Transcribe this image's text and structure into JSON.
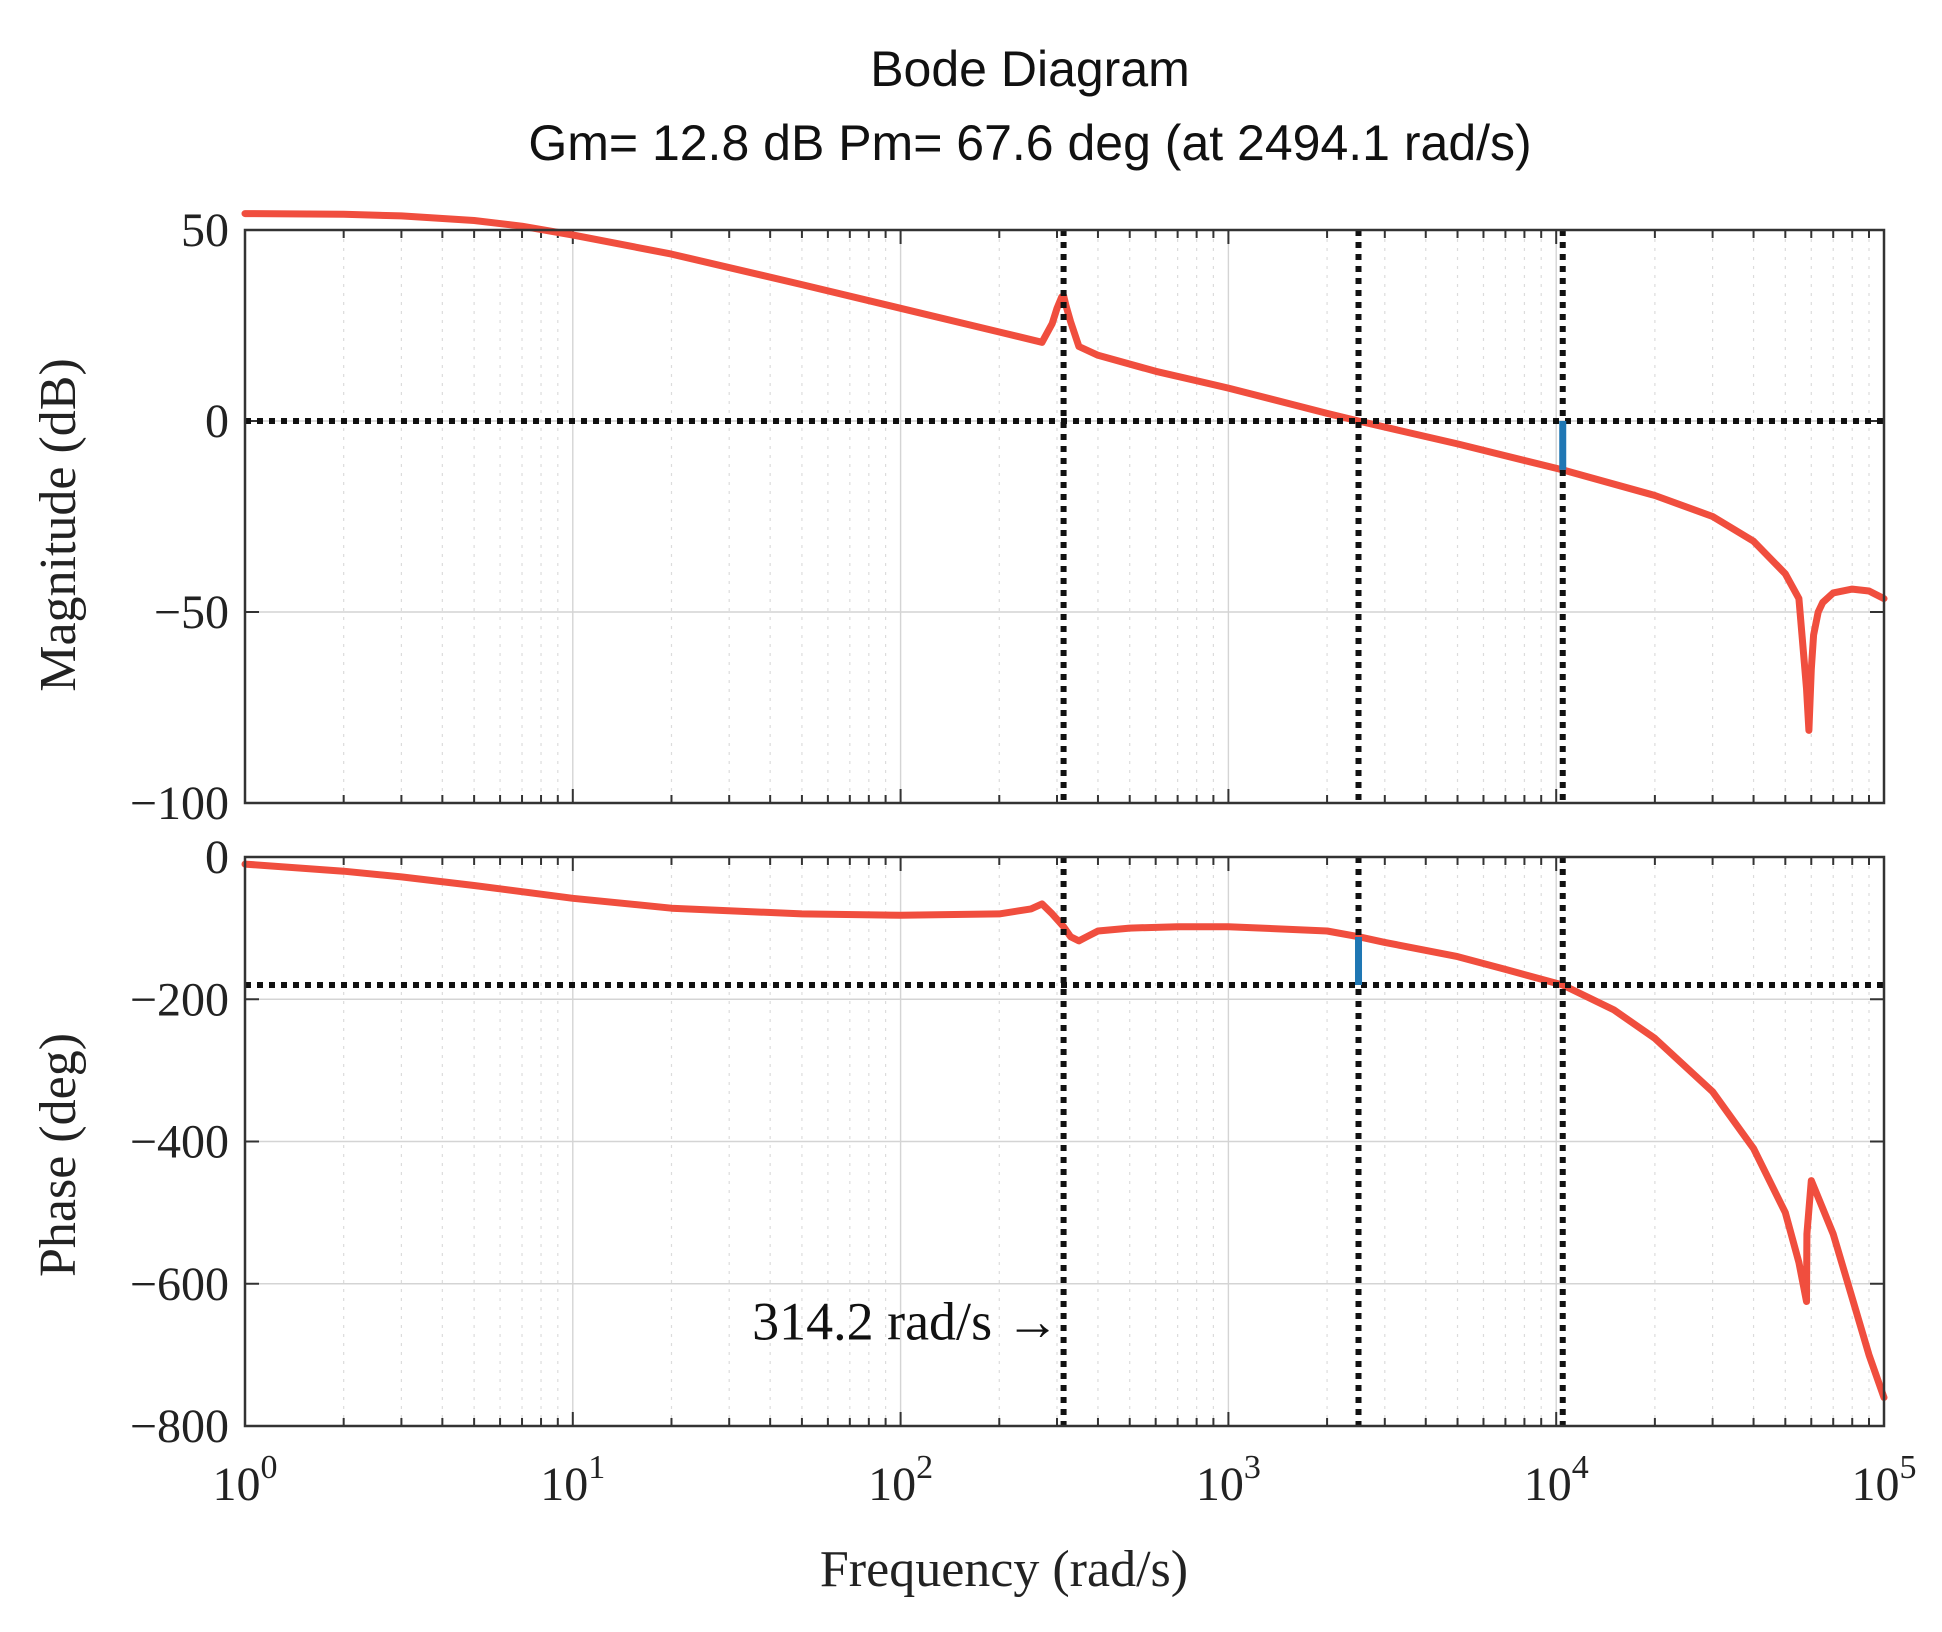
{
  "chart_data": {
    "type": "line",
    "title": "Bode Diagram",
    "subtitle": "Gm= 12.8 dB  Pm= 67.6 deg (at 2494.1 rad/s)",
    "xlabel": "Frequency (rad/s)",
    "x_scale": "log",
    "xlim": [
      1,
      100000
    ],
    "x_ticks": [
      1,
      10,
      100,
      1000,
      10000,
      100000
    ],
    "x_tick_labels": [
      {
        "base": "10",
        "exp": "0"
      },
      {
        "base": "10",
        "exp": "1"
      },
      {
        "base": "10",
        "exp": "2"
      },
      {
        "base": "10",
        "exp": "3"
      },
      {
        "base": "10",
        "exp": "4"
      },
      {
        "base": "10",
        "exp": "5"
      }
    ],
    "grid": true,
    "curve_color": "#f04e3e",
    "margin_color": "#1f77b4",
    "annotation": {
      "text": "314.2 rad/s →",
      "x": 314.2,
      "y": -650
    },
    "vertical_markers": [
      {
        "x": 314.2,
        "panels": "both"
      },
      {
        "x": 2494.1,
        "panels": "both"
      },
      {
        "x": 10470,
        "panels": "both"
      }
    ],
    "panels": [
      {
        "name": "magnitude",
        "ylabel": "Magnitude (dB)",
        "ylim": [
          -100,
          50
        ],
        "y_ticks": [
          50,
          0,
          -50,
          -100
        ],
        "y_tick_labels": [
          "50",
          "0",
          "−50",
          "−100"
        ],
        "reference_line": 0,
        "margin_marker": {
          "x": 10470,
          "y1": 0,
          "y2": -12.8
        },
        "series": [
          {
            "name": "magnitude",
            "x": [
              1,
              2,
              3,
              5,
              7,
              10,
              20,
              50,
              100,
              200,
              270,
              290,
              300,
              310,
              314.2,
              320,
              330,
              350,
              400,
              600,
              1000,
              2000,
              2494.1,
              5000,
              10470,
              20000,
              30000,
              40000,
              50000,
              55000,
              58000,
              59000,
              60000,
              61000,
              63000,
              65000,
              70000,
              80000,
              90000,
              100000
            ],
            "y": [
              54.3,
              54.1,
              53.7,
              52.5,
              51.0,
              48.7,
              43.7,
              35.7,
              29.5,
              23.3,
              20.6,
              25.5,
              29.5,
              32.5,
              32.8,
              30.0,
              26.0,
              19.5,
              17.2,
              13.0,
              8.6,
              2.0,
              0.0,
              -6.0,
              -12.8,
              -19.5,
              -25.0,
              -31.5,
              -40.0,
              -46.5,
              -70.0,
              -81.0,
              -65.0,
              -56.0,
              -50.0,
              -47.5,
              -45.0,
              -44.0,
              -44.5,
              -46.5
            ]
          }
        ]
      },
      {
        "name": "phase",
        "ylabel": "Phase (deg)",
        "ylim": [
          -800,
          0
        ],
        "y_ticks": [
          0,
          -200,
          -400,
          -600,
          -800
        ],
        "y_tick_labels": [
          "0",
          "−200",
          "−400",
          "−600",
          "−800"
        ],
        "reference_line": -180,
        "margin_marker": {
          "x": 2494.1,
          "y1": -180,
          "y2": -112.4
        },
        "series": [
          {
            "name": "phase",
            "x": [
              1,
              2,
              3,
              5,
              10,
              20,
              50,
              100,
              200,
              250,
              270,
              290,
              314.2,
              330,
              350,
              370,
              400,
              500,
              700,
              1000,
              2000,
              2494.1,
              3000,
              5000,
              7000,
              10470,
              15000,
              20000,
              30000,
              40000,
              50000,
              55000,
              58000,
              58200,
              60000,
              70000,
              80000,
              90000,
              100000
            ],
            "y": [
              -10,
              -20,
              -28,
              -40,
              -58,
              -72,
              -80,
              -82,
              -80,
              -73,
              -66,
              -80,
              -98,
              -112,
              -118,
              -112,
              -104,
              -100,
              -98,
              -98,
              -104,
              -112,
              -120,
              -140,
              -158,
              -180,
              -215,
              -255,
              -330,
              -410,
              -500,
              -570,
              -625,
              -530,
              -455,
              -530,
              -620,
              -700,
              -760
            ]
          }
        ]
      }
    ]
  }
}
